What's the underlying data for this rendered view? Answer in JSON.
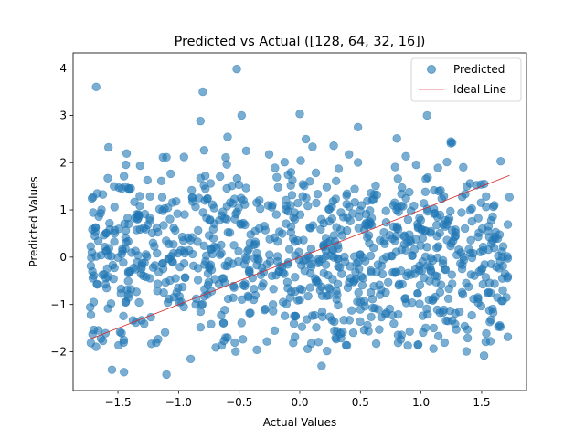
{
  "chart_data": {
    "type": "scatter",
    "title": "Predicted vs Actual ([128, 64, 32, 16])",
    "xlabel": "Actual Values",
    "ylabel": "Predicted Values",
    "xlim": [
      -1.87,
      1.87
    ],
    "ylim": [
      -2.82,
      4.32
    ],
    "xticks": [
      -1.5,
      -1.0,
      -0.5,
      0.0,
      0.5,
      1.0,
      1.5
    ],
    "xtick_labels": [
      "−1.5",
      "−1.0",
      "−0.5",
      "0.0",
      "0.5",
      "1.0",
      "1.5"
    ],
    "yticks": [
      -2,
      -1,
      0,
      1,
      2,
      3,
      4
    ],
    "ytick_labels": [
      "−2",
      "−1",
      "0",
      "1",
      "2",
      "3",
      "4"
    ],
    "grid": false,
    "legend_position": "top-right",
    "series": [
      {
        "name": "Predicted",
        "kind": "scatter",
        "color": "#1f77b4",
        "alpha": 0.6,
        "n_points": 1000,
        "x_range": [
          -1.73,
          1.73
        ],
        "y_mean": 0.0,
        "y_std": 1.0,
        "highlighted_points": [
          {
            "x": -1.68,
            "y": 3.6
          },
          {
            "x": -0.52,
            "y": 3.98
          },
          {
            "x": -0.8,
            "y": 3.5
          },
          {
            "x": -0.48,
            "y": 3.0
          },
          {
            "x": -0.82,
            "y": 2.88
          },
          {
            "x": 0.0,
            "y": 3.03
          },
          {
            "x": 1.05,
            "y": 3.0
          },
          {
            "x": 0.48,
            "y": 2.75
          },
          {
            "x": -1.1,
            "y": -2.48
          },
          {
            "x": -1.45,
            "y": -2.43
          },
          {
            "x": -1.55,
            "y": -2.38
          },
          {
            "x": 0.18,
            "y": -2.3
          },
          {
            "x": -0.9,
            "y": -2.15
          },
          {
            "x": 1.52,
            "y": -2.08
          }
        ]
      },
      {
        "name": "Ideal Line",
        "kind": "line",
        "color": "#d62728",
        "x": [
          -1.73,
          1.73
        ],
        "y": [
          -1.73,
          1.73
        ]
      }
    ]
  },
  "legend": {
    "items": [
      {
        "label": "Predicted",
        "color": "#1f77b4"
      },
      {
        "label": "Ideal Line",
        "color": "#d62728"
      }
    ]
  }
}
